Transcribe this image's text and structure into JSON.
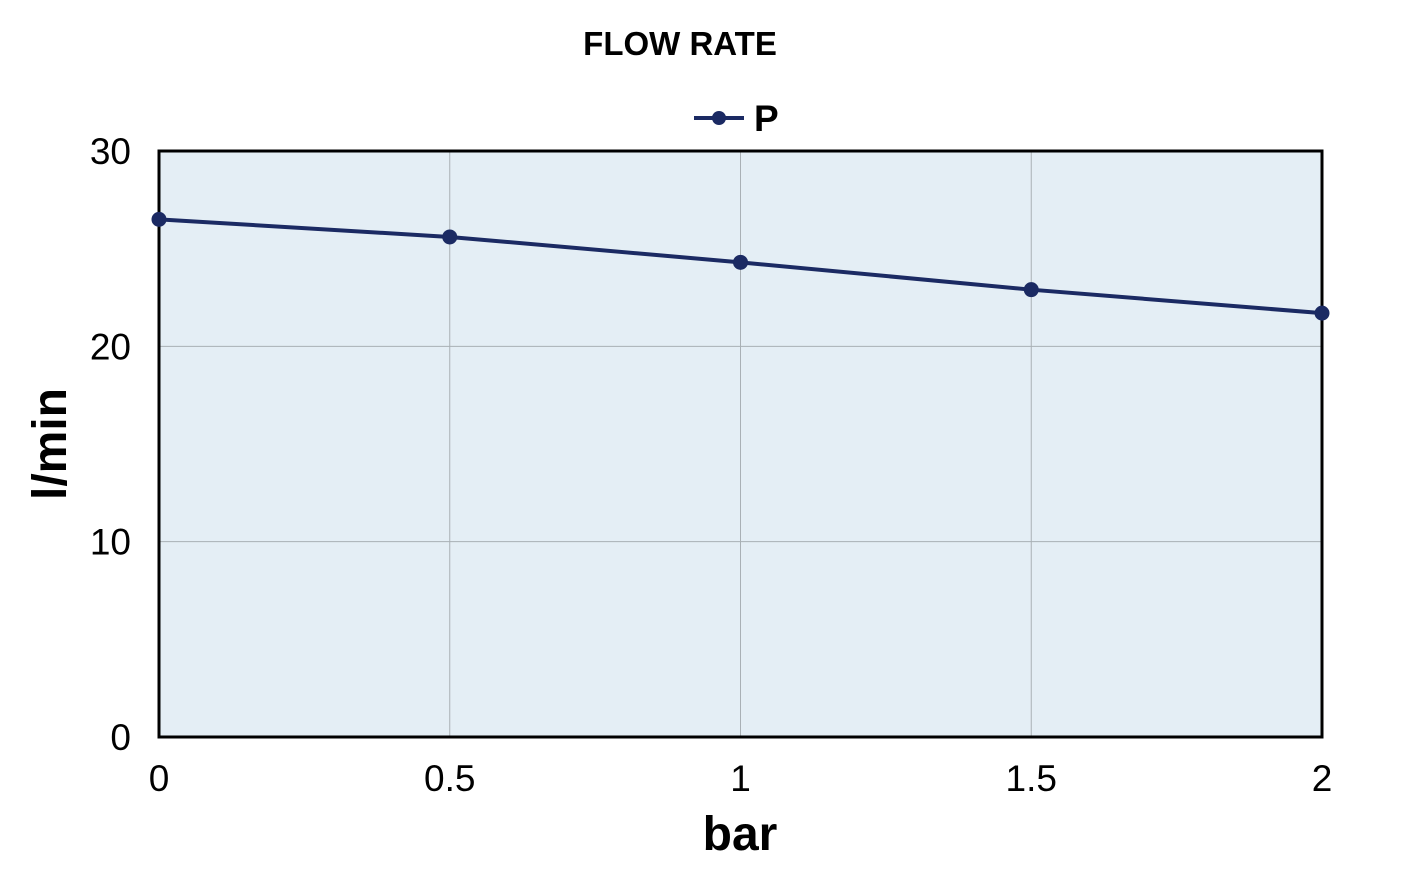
{
  "chart_data": {
    "type": "line",
    "title": "FLOW RATE",
    "xlabel": "bar",
    "ylabel": "l/min",
    "x": [
      0,
      0.5,
      1,
      1.5,
      2
    ],
    "series": [
      {
        "name": "P",
        "values": [
          26.5,
          25.6,
          24.3,
          22.9,
          21.7
        ],
        "color": "#1b2a63"
      }
    ],
    "xlim": [
      0,
      2
    ],
    "ylim": [
      0,
      30
    ],
    "x_ticks": [
      "0",
      "0.5",
      "1",
      "1.5",
      "2"
    ],
    "y_ticks": [
      "0",
      "10",
      "20",
      "30"
    ],
    "grid": true,
    "legend_position": "top-center",
    "plot_background": "#e4eef5",
    "grid_color": "#a9b0b5"
  }
}
